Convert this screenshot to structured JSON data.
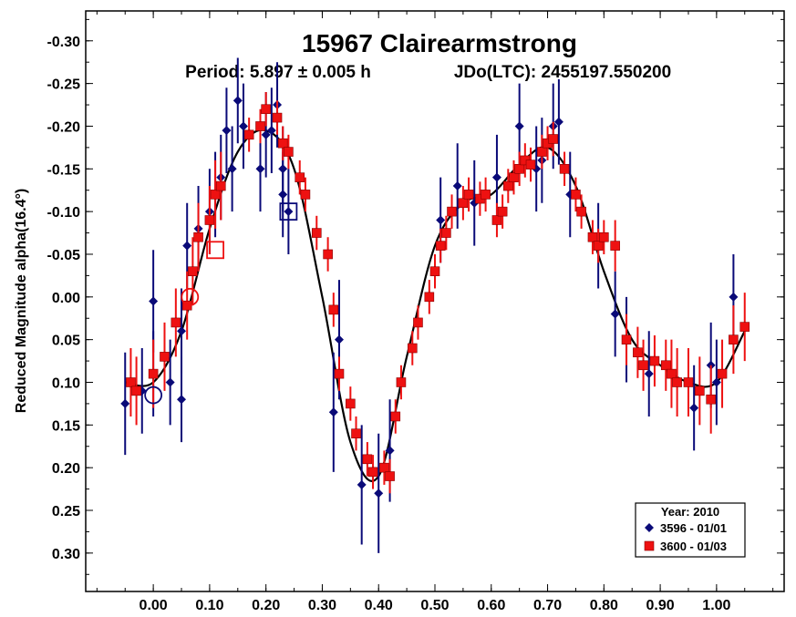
{
  "chart_data": {
    "type": "scatter",
    "title": "15967 Clairearmstrong",
    "subtitle_period": "Period: 5.897 ± 0.005 h",
    "subtitle_epoch": "JDo(LTC): 2455197.550200",
    "xlabel": "",
    "ylabel": "Reduced Magnitude alpha(16.4°)",
    "xlim": [
      -0.12,
      1.12
    ],
    "ylim": [
      -0.335,
      0.345
    ],
    "y_inverted": true,
    "x_ticks": [
      "0.00",
      "0.10",
      "0.20",
      "0.30",
      "0.40",
      "0.50",
      "0.60",
      "0.70",
      "0.80",
      "0.90",
      "1.00"
    ],
    "y_ticks": [
      "-0.30",
      "-0.25",
      "-0.20",
      "-0.15",
      "-0.10",
      "-0.05",
      "0.00",
      "0.05",
      "0.10",
      "0.15",
      "0.20",
      "0.25",
      "0.30"
    ],
    "legend": {
      "title": "Year: 2010",
      "position": "bottom-right",
      "entries": [
        "3596 - 01/01",
        "3600 - 01/03"
      ]
    },
    "colors": {
      "series1": "#0a0a78",
      "series2": "#ee1111",
      "fit": "#000000"
    },
    "fit_curve": {
      "x": [
        -0.05,
        0.0,
        0.05,
        0.1,
        0.15,
        0.2,
        0.25,
        0.3,
        0.35,
        0.4,
        0.45,
        0.5,
        0.55,
        0.6,
        0.65,
        0.7,
        0.75,
        0.8,
        0.85,
        0.9,
        0.95,
        1.0,
        1.05
      ],
      "y": [
        0.1,
        0.1,
        0.04,
        -0.08,
        -0.17,
        -0.195,
        -0.15,
        0.0,
        0.17,
        0.21,
        0.07,
        -0.06,
        -0.11,
        -0.12,
        -0.155,
        -0.175,
        -0.13,
        -0.03,
        0.05,
        0.08,
        0.1,
        0.1,
        0.04
      ]
    },
    "series": [
      {
        "name": "3596 - 01/01",
        "marker": "diamond",
        "x": [
          -0.05,
          -0.02,
          0.0,
          0.0,
          0.03,
          0.05,
          0.05,
          0.06,
          0.08,
          0.1,
          0.11,
          0.12,
          0.13,
          0.14,
          0.15,
          0.16,
          0.19,
          0.2,
          0.21,
          0.22,
          0.23,
          0.23,
          0.24,
          0.32,
          0.33,
          0.37,
          0.4,
          0.42,
          0.51,
          0.54,
          0.57,
          0.61,
          0.65,
          0.68,
          0.69,
          0.71,
          0.72,
          0.74,
          0.79,
          0.82,
          0.84,
          0.88,
          0.96,
          0.99,
          1.0,
          1.03
        ],
        "y": [
          0.125,
          0.11,
          0.005,
          0.09,
          0.1,
          0.04,
          0.12,
          -0.06,
          -0.08,
          -0.1,
          -0.12,
          -0.14,
          -0.195,
          -0.15,
          -0.23,
          -0.2,
          -0.15,
          -0.19,
          -0.195,
          -0.225,
          -0.15,
          -0.12,
          -0.1,
          0.135,
          0.05,
          0.22,
          0.23,
          0.18,
          -0.09,
          -0.13,
          -0.11,
          -0.14,
          -0.2,
          -0.15,
          -0.16,
          -0.2,
          -0.205,
          -0.12,
          -0.06,
          0.02,
          0.05,
          0.09,
          0.13,
          0.08,
          0.1,
          0.0
        ],
        "err": [
          0.06,
          0.05,
          0.06,
          0.05,
          0.05,
          0.05,
          0.05,
          0.05,
          0.05,
          0.05,
          0.05,
          0.05,
          0.05,
          0.05,
          0.05,
          0.05,
          0.05,
          0.05,
          0.05,
          0.05,
          0.05,
          0.05,
          0.05,
          0.07,
          0.07,
          0.07,
          0.07,
          0.06,
          0.05,
          0.05,
          0.05,
          0.05,
          0.05,
          0.05,
          0.05,
          0.05,
          0.05,
          0.05,
          0.05,
          0.05,
          0.05,
          0.05,
          0.05,
          0.05,
          0.05,
          0.05
        ]
      },
      {
        "name": "3600 - 01/03",
        "marker": "square",
        "x": [
          -0.04,
          -0.03,
          0.0,
          0.02,
          0.04,
          0.06,
          0.07,
          0.08,
          0.1,
          0.11,
          0.12,
          0.17,
          0.19,
          0.2,
          0.22,
          0.23,
          0.24,
          0.26,
          0.27,
          0.29,
          0.31,
          0.32,
          0.33,
          0.35,
          0.36,
          0.38,
          0.39,
          0.41,
          0.42,
          0.43,
          0.44,
          0.46,
          0.47,
          0.49,
          0.5,
          0.51,
          0.52,
          0.53,
          0.55,
          0.56,
          0.58,
          0.59,
          0.61,
          0.62,
          0.63,
          0.64,
          0.65,
          0.66,
          0.67,
          0.69,
          0.7,
          0.71,
          0.73,
          0.75,
          0.76,
          0.78,
          0.79,
          0.8,
          0.82,
          0.84,
          0.86,
          0.87,
          0.89,
          0.91,
          0.92,
          0.93,
          0.95,
          0.97,
          0.99,
          1.01,
          1.03,
          1.05
        ],
        "y": [
          0.1,
          0.11,
          0.09,
          0.07,
          0.03,
          0.01,
          -0.03,
          -0.07,
          -0.09,
          -0.12,
          -0.13,
          -0.19,
          -0.2,
          -0.22,
          -0.21,
          -0.18,
          -0.17,
          -0.14,
          -0.12,
          -0.075,
          -0.05,
          0.015,
          0.09,
          0.125,
          0.16,
          0.19,
          0.205,
          0.2,
          0.21,
          0.14,
          0.1,
          0.06,
          0.03,
          0.0,
          -0.03,
          -0.06,
          -0.075,
          -0.1,
          -0.11,
          -0.12,
          -0.115,
          -0.12,
          -0.09,
          -0.1,
          -0.13,
          -0.14,
          -0.15,
          -0.16,
          -0.155,
          -0.17,
          -0.18,
          -0.185,
          -0.15,
          -0.12,
          -0.1,
          -0.07,
          -0.06,
          -0.07,
          -0.06,
          0.05,
          0.065,
          0.08,
          0.075,
          0.08,
          0.09,
          0.1,
          0.1,
          0.11,
          0.12,
          0.09,
          0.05,
          0.035
        ],
        "err": [
          0.04,
          0.04,
          0.04,
          0.04,
          0.04,
          0.04,
          0.04,
          0.04,
          0.04,
          0.04,
          0.04,
          0.02,
          0.02,
          0.02,
          0.02,
          0.02,
          0.02,
          0.02,
          0.02,
          0.02,
          0.02,
          0.02,
          0.02,
          0.02,
          0.02,
          0.02,
          0.02,
          0.02,
          0.02,
          0.02,
          0.02,
          0.02,
          0.02,
          0.02,
          0.02,
          0.02,
          0.02,
          0.02,
          0.02,
          0.02,
          0.02,
          0.02,
          0.02,
          0.02,
          0.02,
          0.02,
          0.02,
          0.02,
          0.02,
          0.02,
          0.02,
          0.02,
          0.02,
          0.02,
          0.02,
          0.02,
          0.02,
          0.02,
          0.03,
          0.03,
          0.03,
          0.03,
          0.03,
          0.03,
          0.04,
          0.04,
          0.04,
          0.04,
          0.04,
          0.04,
          0.04,
          0.04
        ]
      }
    ],
    "highlighted_points": [
      {
        "shape": "square",
        "x": 0.24,
        "y": -0.1,
        "series": "3596 - 01/01"
      },
      {
        "shape": "square",
        "x": 0.11,
        "y": -0.055,
        "series": "3600 - 01/03"
      },
      {
        "shape": "circle",
        "x": 0.065,
        "y": 0.0,
        "series": "3600 - 01/03"
      },
      {
        "shape": "circle",
        "x": 0.0,
        "y": 0.115,
        "series": "3596 - 01/01"
      }
    ]
  }
}
